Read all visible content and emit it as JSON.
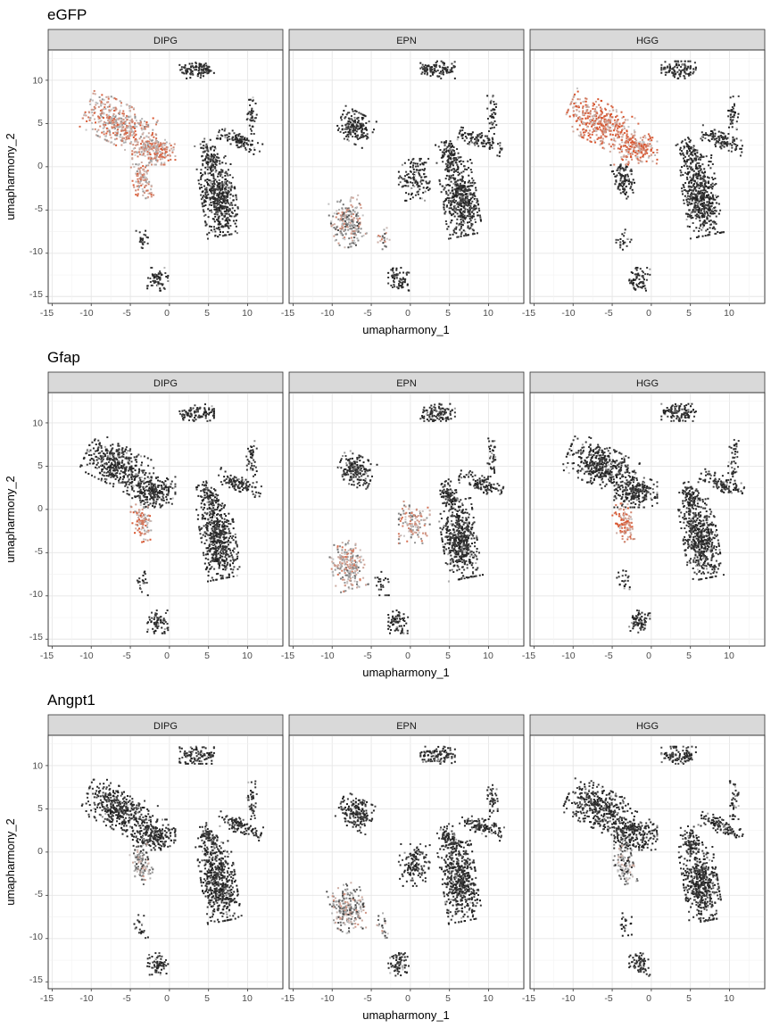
{
  "chart_data": {
    "type": "scatter",
    "xlabel": "umapharmony_1",
    "ylabel": "umapharmony_2",
    "xlim": [
      -15.5,
      14.5
    ],
    "ylim": [
      -15.8,
      13.5
    ],
    "x_ticks": [
      -15,
      -10,
      -5,
      0,
      5,
      10
    ],
    "y_ticks": [
      -15,
      -10,
      -5,
      0,
      5,
      10
    ],
    "tick_labels_x": [
      "-15",
      "-10",
      "-5",
      "0",
      "5",
      "10"
    ],
    "tick_labels_y": [
      "-15",
      "-10",
      "-5",
      "0",
      "5",
      "10"
    ],
    "facets": [
      "DIPG",
      "EPN",
      "HGG"
    ],
    "grid": true,
    "panel_border": "#333333",
    "strip_fill": "#d9d9d9",
    "low_color": "#1a1a1a",
    "mid_color": "#c8c8c8",
    "high_color": "#d9532c",
    "genes": [
      "eGFP",
      "Gfap",
      "Angpt1"
    ],
    "clusters": [
      {
        "id": "top-ring",
        "cx": 3.5,
        "cy": 11.2,
        "rx": 2.0,
        "ry": 0.9,
        "angle": 0,
        "n": 110
      },
      {
        "id": "upper-left-mass",
        "cx": -6.5,
        "cy": 5.0,
        "rx": 4.0,
        "ry": 2.2,
        "angle": -25,
        "n": 420
      },
      {
        "id": "center-mass",
        "cx": -2.0,
        "cy": 2.0,
        "rx": 2.5,
        "ry": 1.6,
        "angle": 0,
        "n": 220
      },
      {
        "id": "stalk",
        "cx": -3.5,
        "cy": -1.5,
        "rx": 1.1,
        "ry": 2.0,
        "angle": 15,
        "n": 110
      },
      {
        "id": "right-island",
        "cx": 6.3,
        "cy": -3.5,
        "rx": 2.0,
        "ry": 4.1,
        "angle": 10,
        "n": 520
      },
      {
        "id": "right-neck",
        "cx": 5.0,
        "cy": 1.5,
        "rx": 1.0,
        "ry": 1.6,
        "angle": 30,
        "n": 90
      },
      {
        "id": "right-arm",
        "cx": 9.0,
        "cy": 3.0,
        "rx": 2.6,
        "ry": 0.8,
        "angle": -20,
        "n": 110
      },
      {
        "id": "right-spike",
        "cx": 10.5,
        "cy": 6.0,
        "rx": 0.6,
        "ry": 2.0,
        "angle": 0,
        "n": 40
      },
      {
        "id": "bottom-blob",
        "cx": -1.5,
        "cy": -13.0,
        "rx": 1.2,
        "ry": 1.2,
        "angle": 0,
        "n": 70
      },
      {
        "id": "small-chain",
        "cx": -3.5,
        "cy": -8.5,
        "rx": 0.9,
        "ry": 1.3,
        "angle": 0,
        "n": 22
      }
    ],
    "expression": [
      {
        "gene": "eGFP",
        "panel": "DIPG",
        "high": [
          "upper-left-mass",
          "center-mass",
          "stalk"
        ],
        "level": 0.55
      },
      {
        "gene": "eGFP",
        "panel": "EPN",
        "high": [
          "stalk",
          "small-chain"
        ],
        "level": 0.35
      },
      {
        "gene": "eGFP",
        "panel": "HGG",
        "high": [
          "upper-left-mass",
          "center-mass"
        ],
        "level": 0.7
      },
      {
        "gene": "Gfap",
        "panel": "DIPG",
        "high": [
          "stalk"
        ],
        "level": 0.6
      },
      {
        "gene": "Gfap",
        "panel": "EPN",
        "high": [
          "stalk",
          "center-mass"
        ],
        "level": 0.45
      },
      {
        "gene": "Gfap",
        "panel": "HGG",
        "high": [
          "stalk"
        ],
        "level": 0.7
      },
      {
        "gene": "Angpt1",
        "panel": "DIPG",
        "high": [
          "stalk"
        ],
        "level": 0.25
      },
      {
        "gene": "Angpt1",
        "panel": "EPN",
        "high": [
          "stalk",
          "small-chain"
        ],
        "level": 0.3
      },
      {
        "gene": "Angpt1",
        "panel": "HGG",
        "high": [
          "stalk"
        ],
        "level": 0.2
      }
    ]
  }
}
